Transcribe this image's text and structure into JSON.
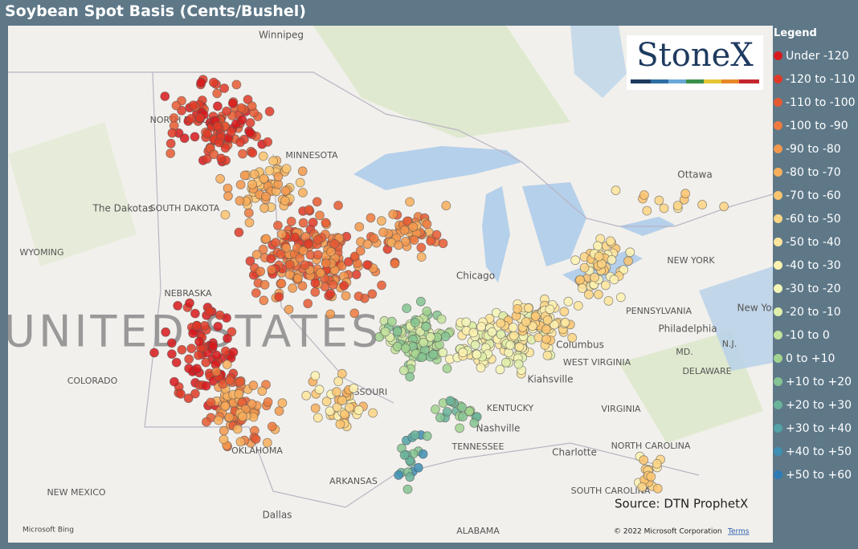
{
  "header": {
    "title": "Soybean Spot Basis (Cents/Bushel)"
  },
  "logo": "StoneX",
  "legend": {
    "title": "Legend",
    "items": [
      {
        "label": "Under -120",
        "color": "#d7191c"
      },
      {
        "label": "-120 to -110",
        "color": "#df3a27"
      },
      {
        "label": "-110 to -100",
        "color": "#e65a33"
      },
      {
        "label": "-100 to -90",
        "color": "#ed7a3e"
      },
      {
        "label": "-90 to -80",
        "color": "#f3984c"
      },
      {
        "label": "-80 to -70",
        "color": "#f8af5c"
      },
      {
        "label": "-70 to -60",
        "color": "#fbc46f"
      },
      {
        "label": "-60 to -50",
        "color": "#fdd584"
      },
      {
        "label": "-50 to -40",
        "color": "#fee59b"
      },
      {
        "label": "-40 to -30",
        "color": "#fef2b0"
      },
      {
        "label": "-30 to -20",
        "color": "#f4f6b6"
      },
      {
        "label": "-20 to -10",
        "color": "#e0efaa"
      },
      {
        "label": "-10 to 0",
        "color": "#c4e39d"
      },
      {
        "label": "0 to +10",
        "color": "#a2d48f"
      },
      {
        "label": "+10 to +20",
        "color": "#85c492"
      },
      {
        "label": "+20 to +30",
        "color": "#6ab39a"
      },
      {
        "label": "+30 to +40",
        "color": "#52a2a6"
      },
      {
        "label": "+40 to +50",
        "color": "#3e8fb4"
      },
      {
        "label": "+50 to +60",
        "color": "#2c7bb6"
      }
    ]
  },
  "map": {
    "labels": [
      "Winnipeg",
      "NORTH DAKOTA",
      "MINNESOTA",
      "The Dakotas",
      "SOUTH DAKOTA",
      "WYOMING",
      "NEBRASKA",
      "UNITED STATES",
      "COLORADO",
      "MISSOURI",
      "OKLAHOMA",
      "NEW MEXICO",
      "ARKANSAS",
      "Dallas",
      "ALABAMA",
      "TENNESSEE",
      "Nashville",
      "KENTUCKY",
      "Kiahsville",
      "WEST VIRGINIA",
      "VIRGINIA",
      "Columbus",
      "PENNSYLVANIA",
      "Philadelphia",
      "NEW YORK",
      "New York",
      "Ottawa",
      "Chicago",
      "Charlotte",
      "NORTH CAROLINA",
      "SOUTH CAROLINA",
      "MD.",
      "N.J.",
      "DELAWARE"
    ]
  },
  "footer": {
    "source": "Source: DTN ProphetX",
    "copyright": "© 2022 Microsoft Corporation",
    "terms": "Terms",
    "bing": "Microsoft Bing"
  }
}
